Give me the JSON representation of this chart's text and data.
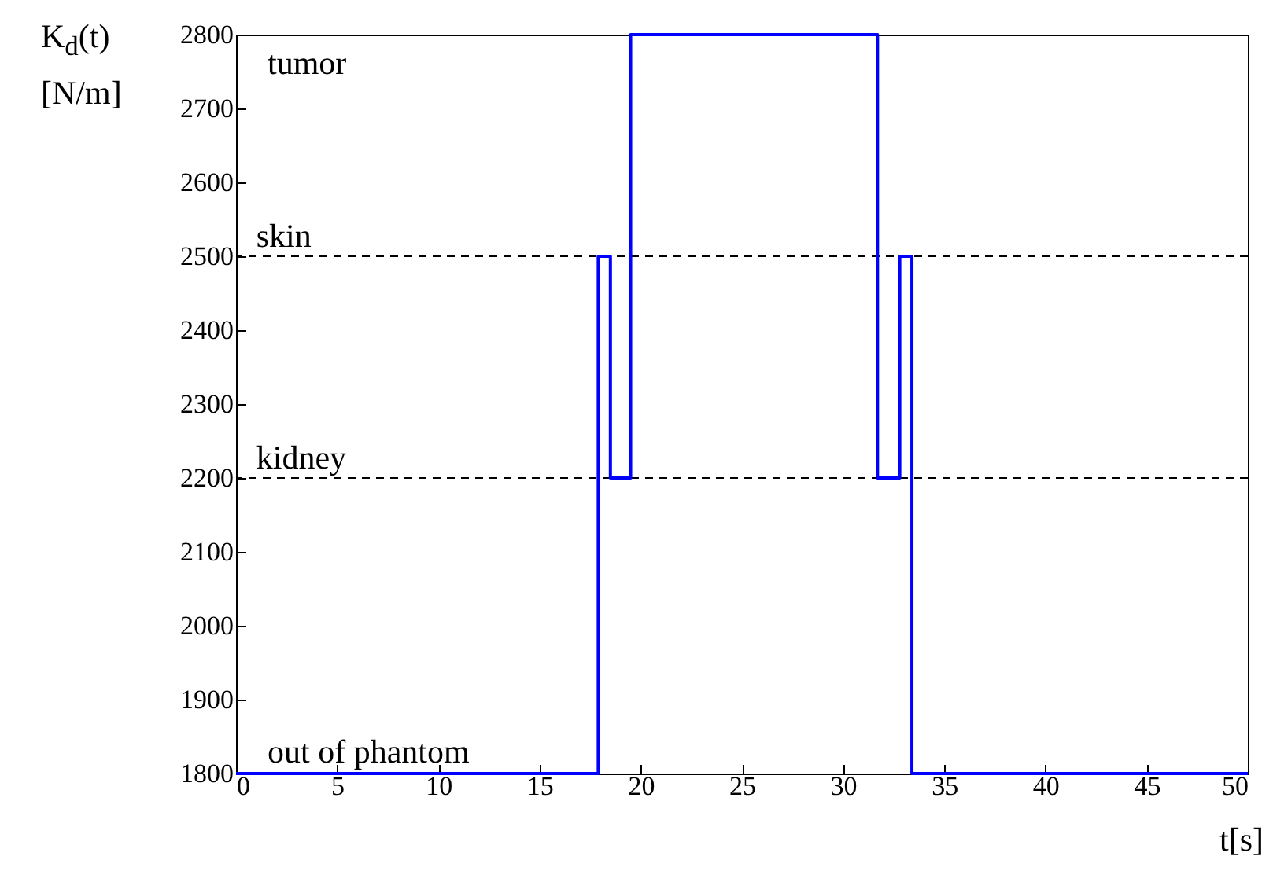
{
  "chart_data": {
    "type": "step",
    "xlabel": "t[s]",
    "ylabel": "K$_{d}$(t) [N/m]",
    "x": [
      0,
      17.9,
      18.5,
      19.5,
      31.7,
      32.8,
      33.4,
      50
    ],
    "series": [
      {
        "color": "#0000ff",
        "values": [
          1800,
          2500,
          2200,
          2800,
          2200,
          2500,
          1800,
          1800
        ]
      }
    ],
    "xlim": [
      0,
      50
    ],
    "xticks": [
      0,
      5,
      10,
      15,
      20,
      25,
      30,
      35,
      40,
      45,
      50
    ],
    "ylim": [
      1800,
      2800
    ],
    "yticks": [
      1800,
      1900,
      2000,
      2100,
      2200,
      2300,
      2400,
      2500,
      2600,
      2700,
      2800
    ],
    "ref_lines": [
      {
        "axis": "y",
        "value": 2500,
        "label": "skin",
        "color": "#000000",
        "line_style": "dashed"
      },
      {
        "axis": "y",
        "value": 2200,
        "label": "kidney",
        "color": "#000000",
        "line_style": "dashed"
      }
    ],
    "annotations": [
      "tumor",
      "out of phantom"
    ]
  }
}
